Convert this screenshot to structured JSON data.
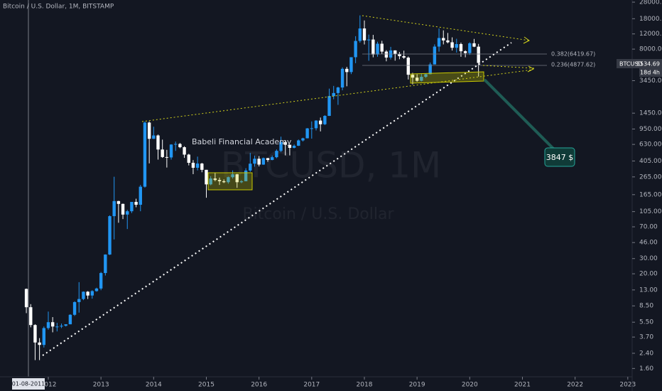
{
  "chart_data": {
    "type": "candlestick",
    "title": "Bitcoin / U.S. Dollar, 1M, BITSTAMP",
    "watermark": "BTCUSD, 1M",
    "watermark_subtitle": "Bitcoin / U.S. Dollar",
    "symbol": "BTCUSD",
    "countdown": "18d 4h",
    "crosshair_label": "01-08-2011",
    "annotations": [
      "Babeli Financial Academy",
      "3847 $",
      "0.382(6419.67)",
      "0.236(4877.62)"
    ],
    "up_color": "#2196f3",
    "down_color": "#ffffff",
    "log_scale": true,
    "grid": false,
    "x": [
      "2011-08",
      "2011-09",
      "2011-10",
      "2011-11",
      "2011-12",
      "2012-01",
      "2012-02",
      "2012-03",
      "2012-04",
      "2012-05",
      "2012-06",
      "2012-07",
      "2012-08",
      "2012-09",
      "2012-10",
      "2012-11",
      "2012-12",
      "2013-01",
      "2013-02",
      "2013-03",
      "2013-04",
      "2013-05",
      "2013-06",
      "2013-07",
      "2013-08",
      "2013-09",
      "2013-10",
      "2013-11",
      "2013-12",
      "2014-01",
      "2014-02",
      "2014-03",
      "2014-04",
      "2014-05",
      "2014-06",
      "2014-07",
      "2014-08",
      "2014-09",
      "2014-10",
      "2014-11",
      "2014-12",
      "2015-01",
      "2015-02",
      "2015-03",
      "2015-04",
      "2015-05",
      "2015-06",
      "2015-07",
      "2015-08",
      "2015-09",
      "2015-10",
      "2015-11",
      "2015-12",
      "2016-01",
      "2016-02",
      "2016-03",
      "2016-04",
      "2016-05",
      "2016-06",
      "2016-07",
      "2016-08",
      "2016-09",
      "2016-10",
      "2016-11",
      "2016-12",
      "2017-01",
      "2017-02",
      "2017-03",
      "2017-04",
      "2017-05",
      "2017-06",
      "2017-07",
      "2017-08",
      "2017-09",
      "2017-10",
      "2017-11",
      "2017-12",
      "2018-01",
      "2018-02",
      "2018-03",
      "2018-04",
      "2018-05",
      "2018-06",
      "2018-07",
      "2018-08",
      "2018-09",
      "2018-10",
      "2018-11",
      "2018-12",
      "2019-01",
      "2019-02",
      "2019-03",
      "2019-04",
      "2019-05",
      "2019-06",
      "2019-07",
      "2019-08",
      "2019-09",
      "2019-10",
      "2019-11",
      "2019-12",
      "2020-01",
      "2020-02",
      "2020-03"
    ],
    "open": [
      13.35,
      8.2,
      5.1,
      3.2,
      3.0,
      4.7,
      5.5,
      4.9,
      4.9,
      5.0,
      5.2,
      6.7,
      9.4,
      10.2,
      12.4,
      11.2,
      12.6,
      13.5,
      20.4,
      33.4,
      93,
      139,
      129,
      97,
      106,
      136,
      126,
      204,
      1128,
      732,
      800,
      550,
      450,
      445,
      628,
      638,
      585,
      480,
      386,
      338,
      378,
      320,
      217,
      254,
      244,
      236,
      230,
      263,
      284,
      230,
      236,
      314,
      377,
      430,
      368,
      437,
      416,
      448,
      531,
      670,
      624,
      575,
      608,
      701,
      742,
      966,
      970,
      1190,
      1079,
      1348,
      2285,
      2480,
      2875,
      4730,
      4340,
      6450,
      9950,
      13880,
      10110,
      10330,
      6930,
      9240,
      7490,
      6390,
      7730,
      7030,
      6630,
      6370,
      4040,
      3740,
      3440,
      3820,
      4100,
      5320,
      8560,
      10760,
      10090,
      9600,
      8290,
      9150,
      7560,
      7200,
      9350,
      8540
    ],
    "high": [
      13.5,
      8.9,
      5.2,
      3.6,
      4.9,
      7.3,
      6.3,
      5.4,
      5.3,
      5.2,
      6.8,
      9.6,
      16,
      12.5,
      12.6,
      12.9,
      13.8,
      21,
      33.6,
      95,
      266,
      140,
      130,
      110,
      136,
      148,
      214,
      1163,
      1163,
      1010,
      820,
      716,
      545,
      633,
      680,
      655,
      600,
      490,
      415,
      455,
      385,
      320,
      270,
      299,
      260,
      248,
      267,
      315,
      287,
      243,
      334,
      502,
      467,
      462,
      444,
      439,
      468,
      552,
      775,
      704,
      626,
      630,
      718,
      753,
      975,
      1163,
      1200,
      1290,
      1375,
      2790,
      3000,
      2935,
      4920,
      4980,
      6450,
      11300,
      19660,
      17180,
      11790,
      11700,
      9750,
      9990,
      7770,
      8500,
      7750,
      7410,
      7680,
      6570,
      4250,
      4100,
      4200,
      4140,
      5600,
      9080,
      13880,
      13200,
      12320,
      10950,
      10540,
      9520,
      7750,
      9590,
      10500,
      9190
    ],
    "low": [
      7.0,
      4.8,
      2.0,
      2.0,
      2.8,
      4.5,
      4.2,
      4.3,
      4.7,
      4.9,
      5.2,
      6.5,
      7.1,
      9.9,
      10.2,
      10.3,
      12.4,
      12.9,
      19.1,
      33,
      50,
      78,
      86,
      66,
      101,
      118,
      106,
      199,
      380,
      727,
      420,
      440,
      340,
      420,
      530,
      570,
      440,
      360,
      285,
      315,
      300,
      152,
      212,
      236,
      214,
      225,
      221,
      253,
      198,
      224,
      236,
      303,
      348,
      350,
      365,
      396,
      413,
      436,
      514,
      470,
      470,
      567,
      604,
      681,
      740,
      735,
      915,
      892,
      1056,
      1345,
      2100,
      1810,
      2670,
      2970,
      4110,
      5500,
      9500,
      9060,
      5870,
      6430,
      6530,
      7000,
      5780,
      6070,
      5880,
      6110,
      6170,
      3560,
      3120,
      3350,
      3380,
      3720,
      4080,
      5320,
      7480,
      9070,
      9330,
      7710,
      7300,
      6520,
      6430,
      6860,
      8450,
      3850
    ],
    "close": [
      8.2,
      5.1,
      3.2,
      3.0,
      4.7,
      5.5,
      4.9,
      4.9,
      5.0,
      5.2,
      6.7,
      9.4,
      10.2,
      12.4,
      11.2,
      12.6,
      13.5,
      20.4,
      33.4,
      93,
      139,
      129,
      97,
      106,
      136,
      126,
      204,
      1128,
      732,
      800,
      550,
      450,
      445,
      628,
      638,
      585,
      480,
      386,
      338,
      378,
      320,
      217,
      254,
      244,
      236,
      230,
      263,
      284,
      230,
      236,
      314,
      377,
      430,
      368,
      437,
      416,
      448,
      531,
      670,
      624,
      575,
      608,
      701,
      742,
      966,
      970,
      1190,
      1079,
      1348,
      2285,
      2480,
      2875,
      4730,
      4340,
      6450,
      9950,
      13880,
      10110,
      10330,
      6930,
      9240,
      7490,
      6390,
      7730,
      7030,
      6630,
      6370,
      4040,
      3740,
      3440,
      3820,
      4100,
      5320,
      8560,
      10760,
      10090,
      9600,
      8290,
      9150,
      7560,
      7200,
      9350,
      8540,
      5534.69
    ],
    "xlim": [
      "2011-02",
      "2023-02"
    ],
    "xticks": [
      {
        "value": "2012-01",
        "label": "2012"
      },
      {
        "value": "2013-01",
        "label": "2013"
      },
      {
        "value": "2014-01",
        "label": "2014"
      },
      {
        "value": "2015-01",
        "label": "2015"
      },
      {
        "value": "2016-01",
        "label": "2016"
      },
      {
        "value": "2017-01",
        "label": "2017"
      },
      {
        "value": "2018-01",
        "label": "2018"
      },
      {
        "value": "2019-01",
        "label": "2019"
      },
      {
        "value": "2020-01",
        "label": "2020"
      },
      {
        "value": "2021-01",
        "label": "2021"
      },
      {
        "value": "2022-01",
        "label": "2022"
      },
      {
        "value": "2023-01",
        "label": "2023"
      }
    ],
    "ylim": [
      1.41,
      29650
    ],
    "yticks": [
      {
        "value": 28000,
        "label": "28000.00"
      },
      {
        "value": 18000,
        "label": "18000.00"
      },
      {
        "value": 12000,
        "label": "12000.00"
      },
      {
        "value": 8000,
        "label": "8000.00"
      },
      {
        "value": 3450,
        "label": "3450.00"
      },
      {
        "value": 1450,
        "label": "1450.00"
      },
      {
        "value": 950,
        "label": "950.00"
      },
      {
        "value": 630,
        "label": "630.00"
      },
      {
        "value": 405,
        "label": "405.00"
      },
      {
        "value": 265,
        "label": "265.00"
      },
      {
        "value": 165,
        "label": "165.00"
      },
      {
        "value": 105,
        "label": "105.00"
      },
      {
        "value": 70,
        "label": "70.00"
      },
      {
        "value": 46,
        "label": "46.00"
      },
      {
        "value": 30,
        "label": "30.00"
      },
      {
        "value": 20,
        "label": "20.00"
      },
      {
        "value": 13,
        "label": "13.00"
      },
      {
        "value": 8.5,
        "label": "8.50"
      },
      {
        "value": 5.5,
        "label": "5.50"
      },
      {
        "value": 3.7,
        "label": "3.70"
      },
      {
        "value": 2.4,
        "label": "2.40"
      },
      {
        "value": 1.6,
        "label": "1.60"
      }
    ]
  }
}
